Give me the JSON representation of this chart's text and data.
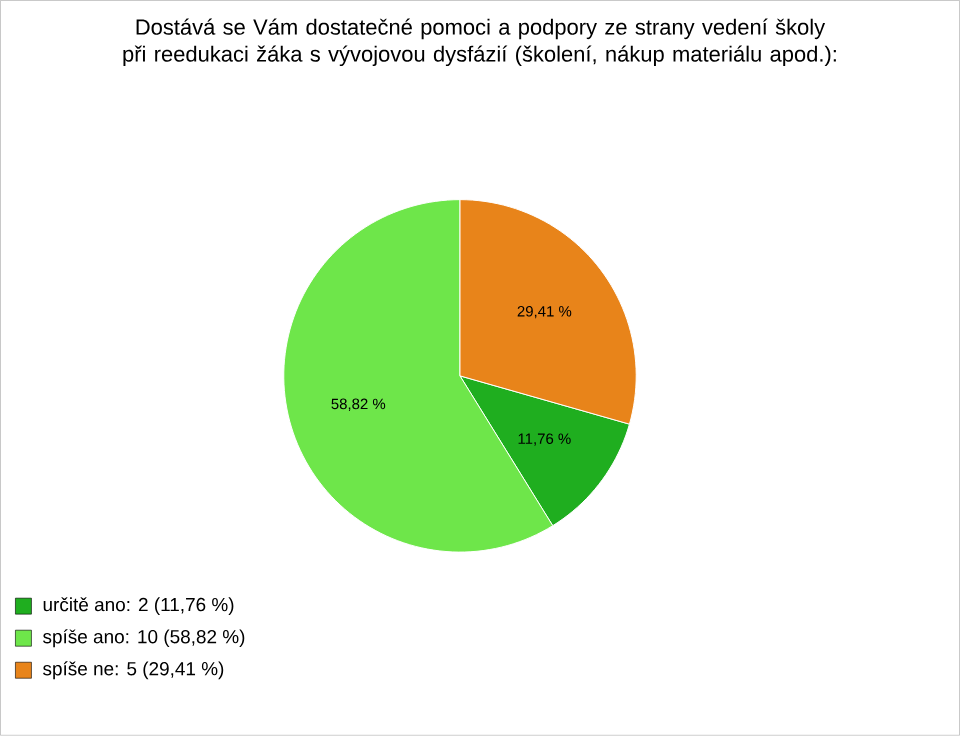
{
  "chart_data": {
    "type": "pie",
    "title": "Dostává se Vám dostatečné pomoci a podpory ze strany vedení školy při reedukaci žáka s vývojovou dysfázií (školení, nákup materiálu apod.):",
    "categories": [
      "určitě ano: 2 (11,76 %)",
      "spíše ano: 10 (58,82 %)",
      "spíše ne: 5 (29,41 %)"
    ],
    "values": [
      11.76,
      58.82,
      29.41
    ],
    "value_labels": [
      "11,76 %",
      "58,82 %",
      "29,41 %"
    ],
    "colors": [
      "#1fae1f",
      "#6ee64a",
      "#e8841a"
    ],
    "legend": "bottom left"
  }
}
